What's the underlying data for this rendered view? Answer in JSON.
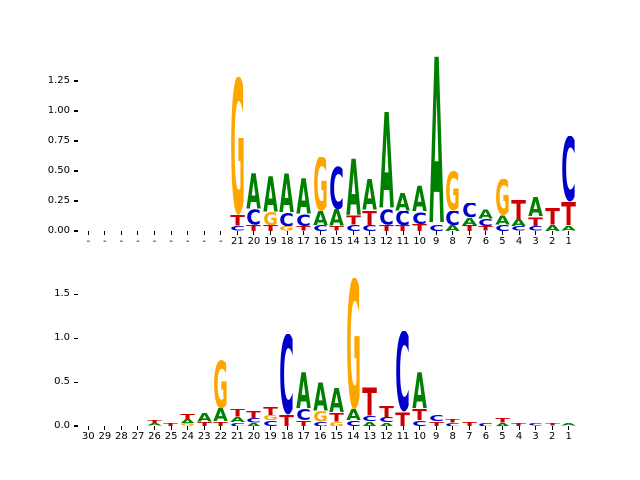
{
  "colors": {
    "A": "#008000",
    "C": "#0000cc",
    "G": "#ffa500",
    "T": "#cc0000"
  },
  "chart_data": [
    {
      "type": "sequence-logo",
      "title": "",
      "xlabel": "",
      "ylabel": "",
      "ylim": [
        0,
        1.55
      ],
      "yticks": [
        0.0,
        0.25,
        0.5,
        0.75,
        1.0,
        1.25
      ],
      "ytick_labels": [
        "0.00",
        "0.25",
        "0.50",
        "0.75",
        "1.00",
        "1.25"
      ],
      "positions": [
        {
          "label": "-",
          "stack": []
        },
        {
          "label": "-",
          "stack": []
        },
        {
          "label": "-",
          "stack": []
        },
        {
          "label": "-",
          "stack": []
        },
        {
          "label": "-",
          "stack": []
        },
        {
          "label": "-",
          "stack": []
        },
        {
          "label": "-",
          "stack": []
        },
        {
          "label": "-",
          "stack": []
        },
        {
          "label": "-",
          "stack": []
        },
        {
          "label": "21",
          "stack": [
            {
              "base": "C",
              "value": 0.04
            },
            {
              "base": "T",
              "value": 0.09
            },
            {
              "base": "G",
              "value": 1.15
            }
          ]
        },
        {
          "label": "20",
          "stack": [
            {
              "base": "T",
              "value": 0.05
            },
            {
              "base": "C",
              "value": 0.13
            },
            {
              "base": "A",
              "value": 0.3
            }
          ]
        },
        {
          "label": "19",
          "stack": [
            {
              "base": "T",
              "value": 0.05
            },
            {
              "base": "G",
              "value": 0.11
            },
            {
              "base": "A",
              "value": 0.3
            }
          ]
        },
        {
          "label": "18",
          "stack": [
            {
              "base": "G",
              "value": 0.04
            },
            {
              "base": "C",
              "value": 0.11
            },
            {
              "base": "A",
              "value": 0.33
            }
          ]
        },
        {
          "label": "17",
          "stack": [
            {
              "base": "T",
              "value": 0.04
            },
            {
              "base": "C",
              "value": 0.1
            },
            {
              "base": "A",
              "value": 0.3
            }
          ]
        },
        {
          "label": "16",
          "stack": [
            {
              "base": "C",
              "value": 0.05
            },
            {
              "base": "A",
              "value": 0.12
            },
            {
              "base": "G",
              "value": 0.45
            }
          ]
        },
        {
          "label": "15",
          "stack": [
            {
              "base": "T",
              "value": 0.04
            },
            {
              "base": "A",
              "value": 0.14
            },
            {
              "base": "C",
              "value": 0.36
            }
          ]
        },
        {
          "label": "14",
          "stack": [
            {
              "base": "C",
              "value": 0.05
            },
            {
              "base": "T",
              "value": 0.08
            },
            {
              "base": "A",
              "value": 0.48
            }
          ]
        },
        {
          "label": "13",
          "stack": [
            {
              "base": "C",
              "value": 0.05
            },
            {
              "base": "T",
              "value": 0.12
            },
            {
              "base": "A",
              "value": 0.26
            }
          ]
        },
        {
          "label": "12",
          "stack": [
            {
              "base": "T",
              "value": 0.05
            },
            {
              "base": "C",
              "value": 0.13
            },
            {
              "base": "A",
              "value": 0.82
            }
          ]
        },
        {
          "label": "11",
          "stack": [
            {
              "base": "T",
              "value": 0.05
            },
            {
              "base": "C",
              "value": 0.12
            },
            {
              "base": "A",
              "value": 0.15
            }
          ]
        },
        {
          "label": "10",
          "stack": [
            {
              "base": "T",
              "value": 0.06
            },
            {
              "base": "C",
              "value": 0.1
            },
            {
              "base": "A",
              "value": 0.22
            }
          ]
        },
        {
          "label": "9",
          "stack": [
            {
              "base": "C",
              "value": 0.05
            },
            {
              "base": "A",
              "value": 1.42
            }
          ]
        },
        {
          "label": "8",
          "stack": [
            {
              "base": "A",
              "value": 0.05
            },
            {
              "base": "C",
              "value": 0.12
            },
            {
              "base": "G",
              "value": 0.33
            }
          ]
        },
        {
          "label": "7",
          "stack": [
            {
              "base": "T",
              "value": 0.05
            },
            {
              "base": "A",
              "value": 0.06
            },
            {
              "base": "C",
              "value": 0.12
            }
          ]
        },
        {
          "label": "6",
          "stack": [
            {
              "base": "T",
              "value": 0.04
            },
            {
              "base": "C",
              "value": 0.06
            },
            {
              "base": "A",
              "value": 0.08
            }
          ]
        },
        {
          "label": "5",
          "stack": [
            {
              "base": "C",
              "value": 0.05
            },
            {
              "base": "A",
              "value": 0.08
            },
            {
              "base": "G",
              "value": 0.3
            }
          ]
        },
        {
          "label": "4",
          "stack": [
            {
              "base": "C",
              "value": 0.04
            },
            {
              "base": "A",
              "value": 0.06
            },
            {
              "base": "T",
              "value": 0.16
            }
          ]
        },
        {
          "label": "3",
          "stack": [
            {
              "base": "C",
              "value": 0.04
            },
            {
              "base": "T",
              "value": 0.08
            },
            {
              "base": "A",
              "value": 0.16
            }
          ]
        },
        {
          "label": "2",
          "stack": [
            {
              "base": "A",
              "value": 0.05
            },
            {
              "base": "T",
              "value": 0.14
            }
          ]
        },
        {
          "label": "1",
          "stack": [
            {
              "base": "A",
              "value": 0.04
            },
            {
              "base": "T",
              "value": 0.2
            },
            {
              "base": "C",
              "value": 0.55
            }
          ]
        }
      ]
    },
    {
      "type": "sequence-logo",
      "title": "",
      "xlabel": "",
      "ylabel": "",
      "ylim": [
        0,
        1.8
      ],
      "yticks": [
        0.0,
        0.5,
        1.0,
        1.5
      ],
      "ytick_labels": [
        "0.0",
        "0.5",
        "1.0",
        "1.5"
      ],
      "positions": [
        {
          "label": "30",
          "stack": []
        },
        {
          "label": "29",
          "stack": []
        },
        {
          "label": "28",
          "stack": []
        },
        {
          "label": "27",
          "stack": []
        },
        {
          "label": "26",
          "stack": [
            {
              "base": "A",
              "value": 0.03
            },
            {
              "base": "T",
              "value": 0.04
            }
          ]
        },
        {
          "label": "25",
          "stack": [
            {
              "base": "T",
              "value": 0.04
            }
          ]
        },
        {
          "label": "24",
          "stack": [
            {
              "base": "G",
              "value": 0.03
            },
            {
              "base": "A",
              "value": 0.05
            },
            {
              "base": "T",
              "value": 0.06
            }
          ]
        },
        {
          "label": "23",
          "stack": [
            {
              "base": "T",
              "value": 0.05
            },
            {
              "base": "A",
              "value": 0.1
            }
          ]
        },
        {
          "label": "22",
          "stack": [
            {
              "base": "T",
              "value": 0.05
            },
            {
              "base": "A",
              "value": 0.15
            },
            {
              "base": "G",
              "value": 0.55
            }
          ]
        },
        {
          "label": "21",
          "stack": [
            {
              "base": "C",
              "value": 0.04
            },
            {
              "base": "A",
              "value": 0.06
            },
            {
              "base": "T",
              "value": 0.09
            }
          ]
        },
        {
          "label": "20",
          "stack": [
            {
              "base": "A",
              "value": 0.04
            },
            {
              "base": "C",
              "value": 0.05
            },
            {
              "base": "T",
              "value": 0.08
            }
          ]
        },
        {
          "label": "19",
          "stack": [
            {
              "base": "C",
              "value": 0.06
            },
            {
              "base": "G",
              "value": 0.06
            },
            {
              "base": "T",
              "value": 0.1
            }
          ]
        },
        {
          "label": "18",
          "stack": [
            {
              "base": "T",
              "value": 0.13
            },
            {
              "base": "C",
              "value": 0.92
            }
          ]
        },
        {
          "label": "17",
          "stack": [
            {
              "base": "T",
              "value": 0.06
            },
            {
              "base": "C",
              "value": 0.13
            },
            {
              "base": "A",
              "value": 0.42
            }
          ]
        },
        {
          "label": "16",
          "stack": [
            {
              "base": "C",
              "value": 0.05
            },
            {
              "base": "G",
              "value": 0.12
            },
            {
              "base": "A",
              "value": 0.33
            }
          ]
        },
        {
          "label": "15",
          "stack": [
            {
              "base": "G",
              "value": 0.05
            },
            {
              "base": "T",
              "value": 0.1
            },
            {
              "base": "A",
              "value": 0.28
            }
          ]
        },
        {
          "label": "14",
          "stack": [
            {
              "base": "C",
              "value": 0.06
            },
            {
              "base": "A",
              "value": 0.13
            },
            {
              "base": "G",
              "value": 1.5
            }
          ]
        },
        {
          "label": "13",
          "stack": [
            {
              "base": "A",
              "value": 0.05
            },
            {
              "base": "C",
              "value": 0.06
            },
            {
              "base": "T",
              "value": 0.33
            }
          ]
        },
        {
          "label": "12",
          "stack": [
            {
              "base": "A",
              "value": 0.04
            },
            {
              "base": "C",
              "value": 0.06
            },
            {
              "base": "T",
              "value": 0.13
            }
          ]
        },
        {
          "label": "11",
          "stack": [
            {
              "base": "T",
              "value": 0.16
            },
            {
              "base": "C",
              "value": 0.92
            }
          ]
        },
        {
          "label": "10",
          "stack": [
            {
              "base": "C",
              "value": 0.06
            },
            {
              "base": "T",
              "value": 0.13
            },
            {
              "base": "A",
              "value": 0.42
            }
          ]
        },
        {
          "label": "9",
          "stack": [
            {
              "base": "T",
              "value": 0.05
            },
            {
              "base": "C",
              "value": 0.07
            }
          ]
        },
        {
          "label": "8",
          "stack": [
            {
              "base": "C",
              "value": 0.04
            },
            {
              "base": "T",
              "value": 0.04
            }
          ]
        },
        {
          "label": "7",
          "stack": [
            {
              "base": "T",
              "value": 0.05
            }
          ]
        },
        {
          "label": "6",
          "stack": [
            {
              "base": "C",
              "value": 0.04
            }
          ]
        },
        {
          "label": "5",
          "stack": [
            {
              "base": "A",
              "value": 0.04
            },
            {
              "base": "T",
              "value": 0.05
            }
          ]
        },
        {
          "label": "4",
          "stack": [
            {
              "base": "T",
              "value": 0.04
            }
          ]
        },
        {
          "label": "3",
          "stack": [
            {
              "base": "C",
              "value": 0.03
            }
          ]
        },
        {
          "label": "2",
          "stack": [
            {
              "base": "T",
              "value": 0.03
            }
          ]
        },
        {
          "label": "1",
          "stack": [
            {
              "base": "A",
              "value": 0.03
            }
          ]
        }
      ]
    }
  ]
}
